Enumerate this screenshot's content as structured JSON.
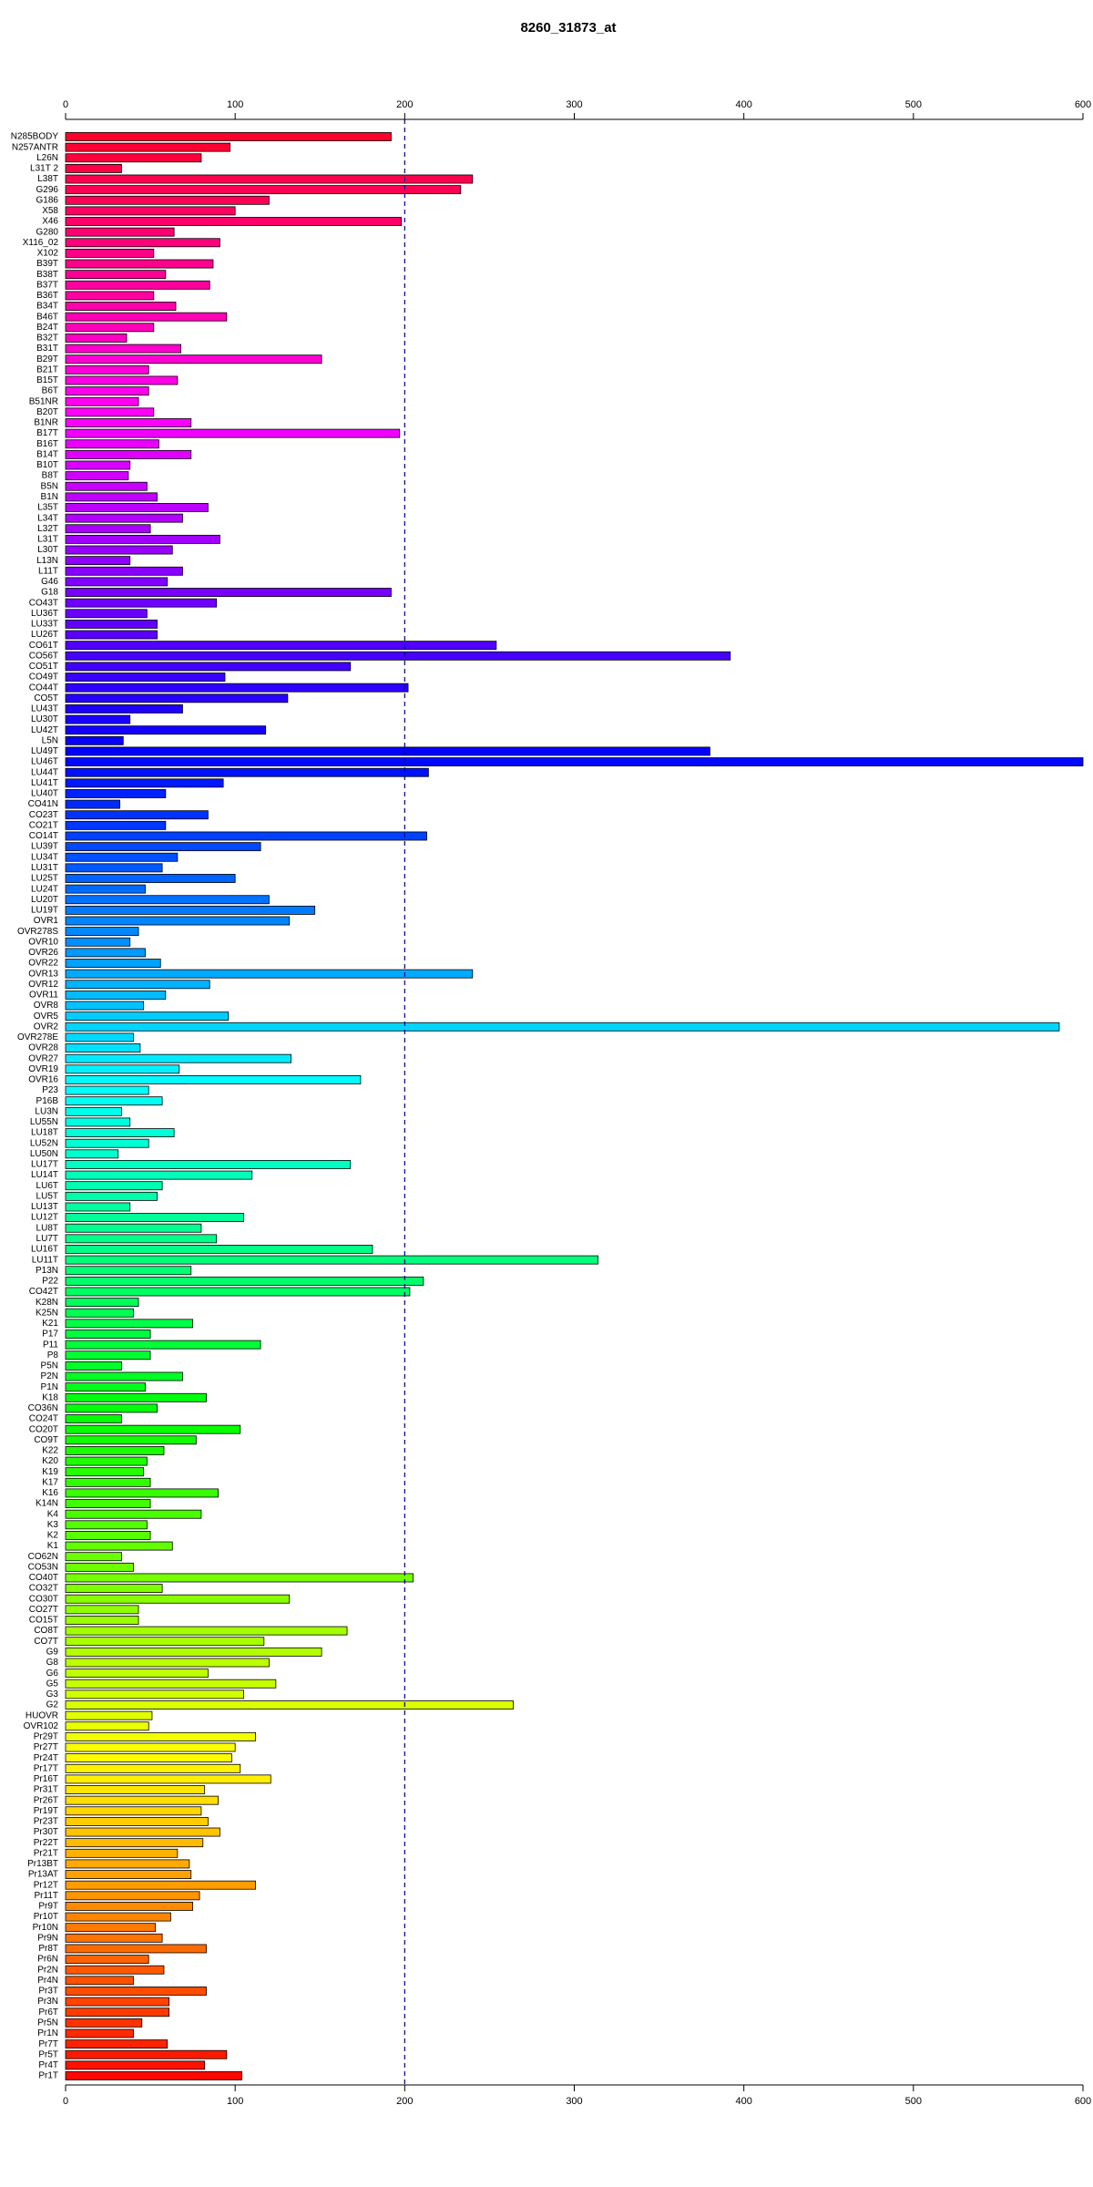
{
  "chart_data": {
    "type": "barh",
    "title": "8260_31873_at",
    "categories": [
      "N285BODY",
      "N257ANTR",
      "L26N",
      "L31T 2",
      "L38T",
      "G296",
      "G186",
      "X58",
      "X46",
      "G280",
      "X116_02",
      "X102",
      "B39T",
      "B38T",
      "B37T",
      "B36T",
      "B34T",
      "B46T",
      "B24T",
      "B32T",
      "B31T",
      "B29T",
      "B21T",
      "B15T",
      "B6T",
      "B51NR",
      "B20T",
      "B1NR",
      "B17T",
      "B16T",
      "B14T",
      "B10T",
      "B8T",
      "B5N",
      "B1N",
      "L35T",
      "L34T",
      "L32T",
      "L31T",
      "L30T",
      "L13N",
      "L11T",
      "G46",
      "G18",
      "CO43T",
      "LU36T",
      "LU33T",
      "LU26T",
      "CO61T",
      "CO56T",
      "CO51T",
      "CO49T",
      "CO44T",
      "CO5T",
      "LU43T",
      "LU30T",
      "LU42T",
      "L5N",
      "LU49T",
      "LU46T",
      "LU44T",
      "LU41T",
      "LU40T",
      "CO41N",
      "CO23T",
      "CO21T",
      "CO14T",
      "LU39T",
      "LU34T",
      "LU31T",
      "LU25T",
      "LU24T",
      "LU20T",
      "LU19T",
      "OVR1",
      "OVR278S",
      "OVR10",
      "OVR26",
      "OVR22",
      "OVR13",
      "OVR12",
      "OVR11",
      "OVR8",
      "OVR5",
      "OVR2",
      "OVR278E",
      "OVR28",
      "OVR27",
      "OVR19",
      "OVR16",
      "P23",
      "P16B",
      "LU3N",
      "LU55N",
      "LU18T",
      "LU52N",
      "LU50N",
      "LU17T",
      "LU14T",
      "LU6T",
      "LU5T",
      "LU13T",
      "LU12T",
      "LU8T",
      "LU7T",
      "LU16T",
      "LU11T",
      "P13N",
      "P22",
      "CO42T",
      "K28N",
      "K25N",
      "K21",
      "P17",
      "P11",
      "P8",
      "P5N",
      "P2N",
      "P1N",
      "K18",
      "CO36N",
      "CO24T",
      "CO20T",
      "CO9T",
      "K22",
      "K20",
      "K19",
      "K17",
      "K16",
      "K14N",
      "K4",
      "K3",
      "K2",
      "K1",
      "CO62N",
      "CO53N",
      "CO40T",
      "CO32T",
      "CO30T",
      "CO27T",
      "CO15T",
      "CO8T",
      "CO7T",
      "G9",
      "G8",
      "G6",
      "G5",
      "G3",
      "G2",
      "HUOVR",
      "OVR102",
      "Pr29T",
      "Pr27T",
      "Pr24T",
      "Pr17T",
      "Pr16T",
      "Pr31T",
      "Pr26T",
      "Pr19T",
      "Pr23T",
      "Pr30T",
      "Pr22T",
      "Pr21T",
      "Pr13BT",
      "Pr13AT",
      "Pr12T",
      "Pr11T",
      "Pr9T",
      "Pr10T",
      "Pr10N",
      "Pr9N",
      "Pr8T",
      "Pr6N",
      "Pr2N",
      "Pr4N",
      "Pr3T",
      "Pr3N",
      "Pr6T",
      "Pr5N",
      "Pr1N",
      "Pr7T",
      "Pr5T",
      "Pr4T",
      "Pr1T"
    ],
    "values": [
      192,
      97,
      80,
      33,
      240,
      233,
      120,
      100,
      198,
      64,
      91,
      52,
      87,
      59,
      85,
      52,
      65,
      95,
      52,
      36,
      68,
      151,
      49,
      66,
      49,
      43,
      52,
      74,
      197,
      55,
      74,
      38,
      37,
      48,
      54,
      84,
      69,
      50,
      91,
      63,
      38,
      69,
      60,
      192,
      89,
      48,
      54,
      54,
      254,
      392,
      168,
      94,
      202,
      131,
      69,
      38,
      118,
      34,
      380,
      600,
      214,
      93,
      59,
      32,
      84,
      59,
      213,
      115,
      66,
      57,
      100,
      47,
      120,
      147,
      132,
      43,
      38,
      47,
      56,
      240,
      85,
      59,
      46,
      96,
      586,
      40,
      44,
      133,
      67,
      174,
      49,
      57,
      33,
      38,
      64,
      49,
      31,
      168,
      110,
      57,
      54,
      38,
      105,
      80,
      89,
      181,
      314,
      74,
      211,
      203,
      43,
      40,
      75,
      50,
      115,
      50,
      33,
      69,
      47,
      83,
      54,
      33,
      103,
      77,
      58,
      48,
      46,
      50,
      90,
      50,
      80,
      48,
      50,
      63,
      33,
      40,
      205,
      57,
      132,
      43,
      43,
      166,
      117,
      151,
      120,
      84,
      124,
      105,
      264,
      51,
      49,
      112,
      100,
      98,
      103,
      121,
      82,
      90,
      80,
      84,
      91,
      81,
      66,
      73,
      74,
      112,
      79,
      75,
      62,
      53,
      57,
      83,
      49,
      58,
      40,
      83,
      61,
      61,
      45,
      40,
      60,
      95,
      82,
      104
    ],
    "colors": [
      "hsl(350,100%,50%)",
      "hsl(348,100%,50%)",
      "hsl(346,100%,50%)",
      "hsl(344,100%,50%)",
      "hsl(342,100%,50%)",
      "hsl(340,100%,50%)",
      "hsl(339,100%,50%)",
      "hsl(337,100%,50%)",
      "hsl(335,100%,50%)",
      "hsl(333,100%,50%)",
      "hsl(331,100%,50%)",
      "hsl(329,100%,50%)",
      "hsl(327,100%,50%)",
      "hsl(325,100%,50%)",
      "hsl(323,100%,50%)",
      "hsl(322,100%,50%)",
      "hsl(320,100%,50%)",
      "hsl(318,100%,50%)",
      "hsl(316,100%,50%)",
      "hsl(314,100%,50%)",
      "hsl(312,100%,50%)",
      "hsl(310,100%,50%)",
      "hsl(308,100%,50%)",
      "hsl(306,100%,50%)",
      "hsl(304,100%,50%)",
      "hsl(303,100%,50%)",
      "hsl(301,100%,50%)",
      "hsl(299,100%,50%)",
      "hsl(297,100%,50%)",
      "hsl(295,100%,50%)",
      "hsl(293,100%,50%)",
      "hsl(291,100%,50%)",
      "hsl(289,100%,50%)",
      "hsl(287,100%,50%)",
      "hsl(285,100%,50%)",
      "hsl(284,100%,50%)",
      "hsl(282,100%,50%)",
      "hsl(280,100%,50%)",
      "hsl(278,100%,50%)",
      "hsl(276,100%,50%)",
      "hsl(274,100%,50%)",
      "hsl(272,100%,50%)",
      "hsl(270,100%,50%)",
      "hsl(268,100%,50%)",
      "hsl(266,100%,50%)",
      "hsl(265,100%,50%)",
      "hsl(263,100%,50%)",
      "hsl(261,100%,50%)",
      "hsl(259,100%,50%)",
      "hsl(257,100%,50%)",
      "hsl(255,100%,50%)",
      "hsl(253,100%,50%)",
      "hsl(251,100%,50%)",
      "hsl(249,100%,50%)",
      "hsl(247,100%,50%)",
      "hsl(246,100%,50%)",
      "hsl(244,100%,50%)",
      "hsl(242,100%,50%)",
      "hsl(240,100%,50%)",
      "hsl(238,100%,50%)",
      "hsl(236,100%,50%)",
      "hsl(234,100%,50%)",
      "hsl(232,100%,50%)",
      "hsl(230,100%,50%)",
      "hsl(228,100%,50%)",
      "hsl(227,100%,50%)",
      "hsl(225,100%,50%)",
      "hsl(223,100%,50%)",
      "hsl(221,100%,50%)",
      "hsl(219,100%,50%)",
      "hsl(217,100%,50%)",
      "hsl(215,100%,50%)",
      "hsl(213,100%,50%)",
      "hsl(211,100%,50%)",
      "hsl(209,100%,50%)",
      "hsl(208,100%,50%)",
      "hsl(206,100%,50%)",
      "hsl(204,100%,50%)",
      "hsl(202,100%,50%)",
      "hsl(200,100%,50%)",
      "hsl(198,100%,50%)",
      "hsl(196,100%,50%)",
      "hsl(194,100%,50%)",
      "hsl(192,100%,50%)",
      "hsl(190,100%,50%)",
      "hsl(189,100%,50%)",
      "hsl(187,100%,50%)",
      "hsl(185,100%,50%)",
      "hsl(183,100%,50%)",
      "hsl(181,100%,50%)",
      "hsl(179,100%,50%)",
      "hsl(177,100%,50%)",
      "hsl(175,100%,50%)",
      "hsl(173,100%,50%)",
      "hsl(171,100%,50%)",
      "hsl(170,100%,50%)",
      "hsl(168,100%,50%)",
      "hsl(166,100%,50%)",
      "hsl(164,100%,50%)",
      "hsl(162,100%,50%)",
      "hsl(160,100%,50%)",
      "hsl(158,100%,50%)",
      "hsl(156,100%,50%)",
      "hsl(154,100%,50%)",
      "hsl(152,100%,50%)",
      "hsl(151,100%,50%)",
      "hsl(149,100%,50%)",
      "hsl(147,100%,50%)",
      "hsl(145,100%,50%)",
      "hsl(143,100%,50%)",
      "hsl(141,100%,50%)",
      "hsl(139,100%,50%)",
      "hsl(137,100%,50%)",
      "hsl(135,100%,50%)",
      "hsl(133,100%,50%)",
      "hsl(132,100%,50%)",
      "hsl(130,100%,50%)",
      "hsl(128,100%,50%)",
      "hsl(126,100%,50%)",
      "hsl(124,100%,50%)",
      "hsl(122,100%,50%)",
      "hsl(120,100%,50%)",
      "hsl(118,100%,50%)",
      "hsl(116,100%,50%)",
      "hsl(114,100%,50%)",
      "hsl(113,100%,50%)",
      "hsl(111,100%,50%)",
      "hsl(109,100%,50%)",
      "hsl(107,100%,50%)",
      "hsl(105,100%,50%)",
      "hsl(103,100%,50%)",
      "hsl(101,100%,50%)",
      "hsl(99,100%,50%)",
      "hsl(97,100%,50%)",
      "hsl(95,100%,50%)",
      "hsl(94,100%,50%)",
      "hsl(92,100%,50%)",
      "hsl(90,100%,50%)",
      "hsl(88,100%,50%)",
      "hsl(86,100%,50%)",
      "hsl(84,100%,50%)",
      "hsl(82,100%,50%)",
      "hsl(80,100%,50%)",
      "hsl(78,100%,50%)",
      "hsl(76,100%,50%)",
      "hsl(75,100%,50%)",
      "hsl(73,100%,50%)",
      "hsl(71,100%,50%)",
      "hsl(69,100%,50%)",
      "hsl(67,100%,50%)",
      "hsl(65,100%,50%)",
      "hsl(63,100%,50%)",
      "hsl(61,100%,50%)",
      "hsl(59,100%,50%)",
      "hsl(57,100%,50%)",
      "hsl(56,100%,50%)",
      "hsl(54,100%,50%)",
      "hsl(52,100%,50%)",
      "hsl(50,100%,50%)",
      "hsl(48,100%,50%)",
      "hsl(46,100%,50%)",
      "hsl(44,100%,50%)",
      "hsl(42,100%,50%)",
      "hsl(40,100%,50%)",
      "hsl(38,100%,50%)",
      "hsl(37,100%,50%)",
      "hsl(35,100%,50%)",
      "hsl(33,100%,50%)",
      "hsl(31,100%,50%)",
      "hsl(29,100%,50%)",
      "hsl(27,100%,50%)",
      "hsl(25,100%,50%)",
      "hsl(23,100%,50%)",
      "hsl(21,100%,50%)",
      "hsl(19,100%,50%)",
      "hsl(18,100%,50%)",
      "hsl(16,100%,50%)",
      "hsl(14,100%,50%)",
      "hsl(12,100%,50%)",
      "hsl(10,100%,50%)",
      "hsl(8,100%,50%)",
      "hsl(6,100%,50%)",
      "hsl(4,100%,50%)",
      "hsl(2,100%,50%)"
    ],
    "xlim": [
      0,
      600
    ],
    "xticks": [
      0,
      100,
      200,
      300,
      400,
      500,
      600
    ],
    "reference_line": 200,
    "reference_color": "#00008b"
  }
}
